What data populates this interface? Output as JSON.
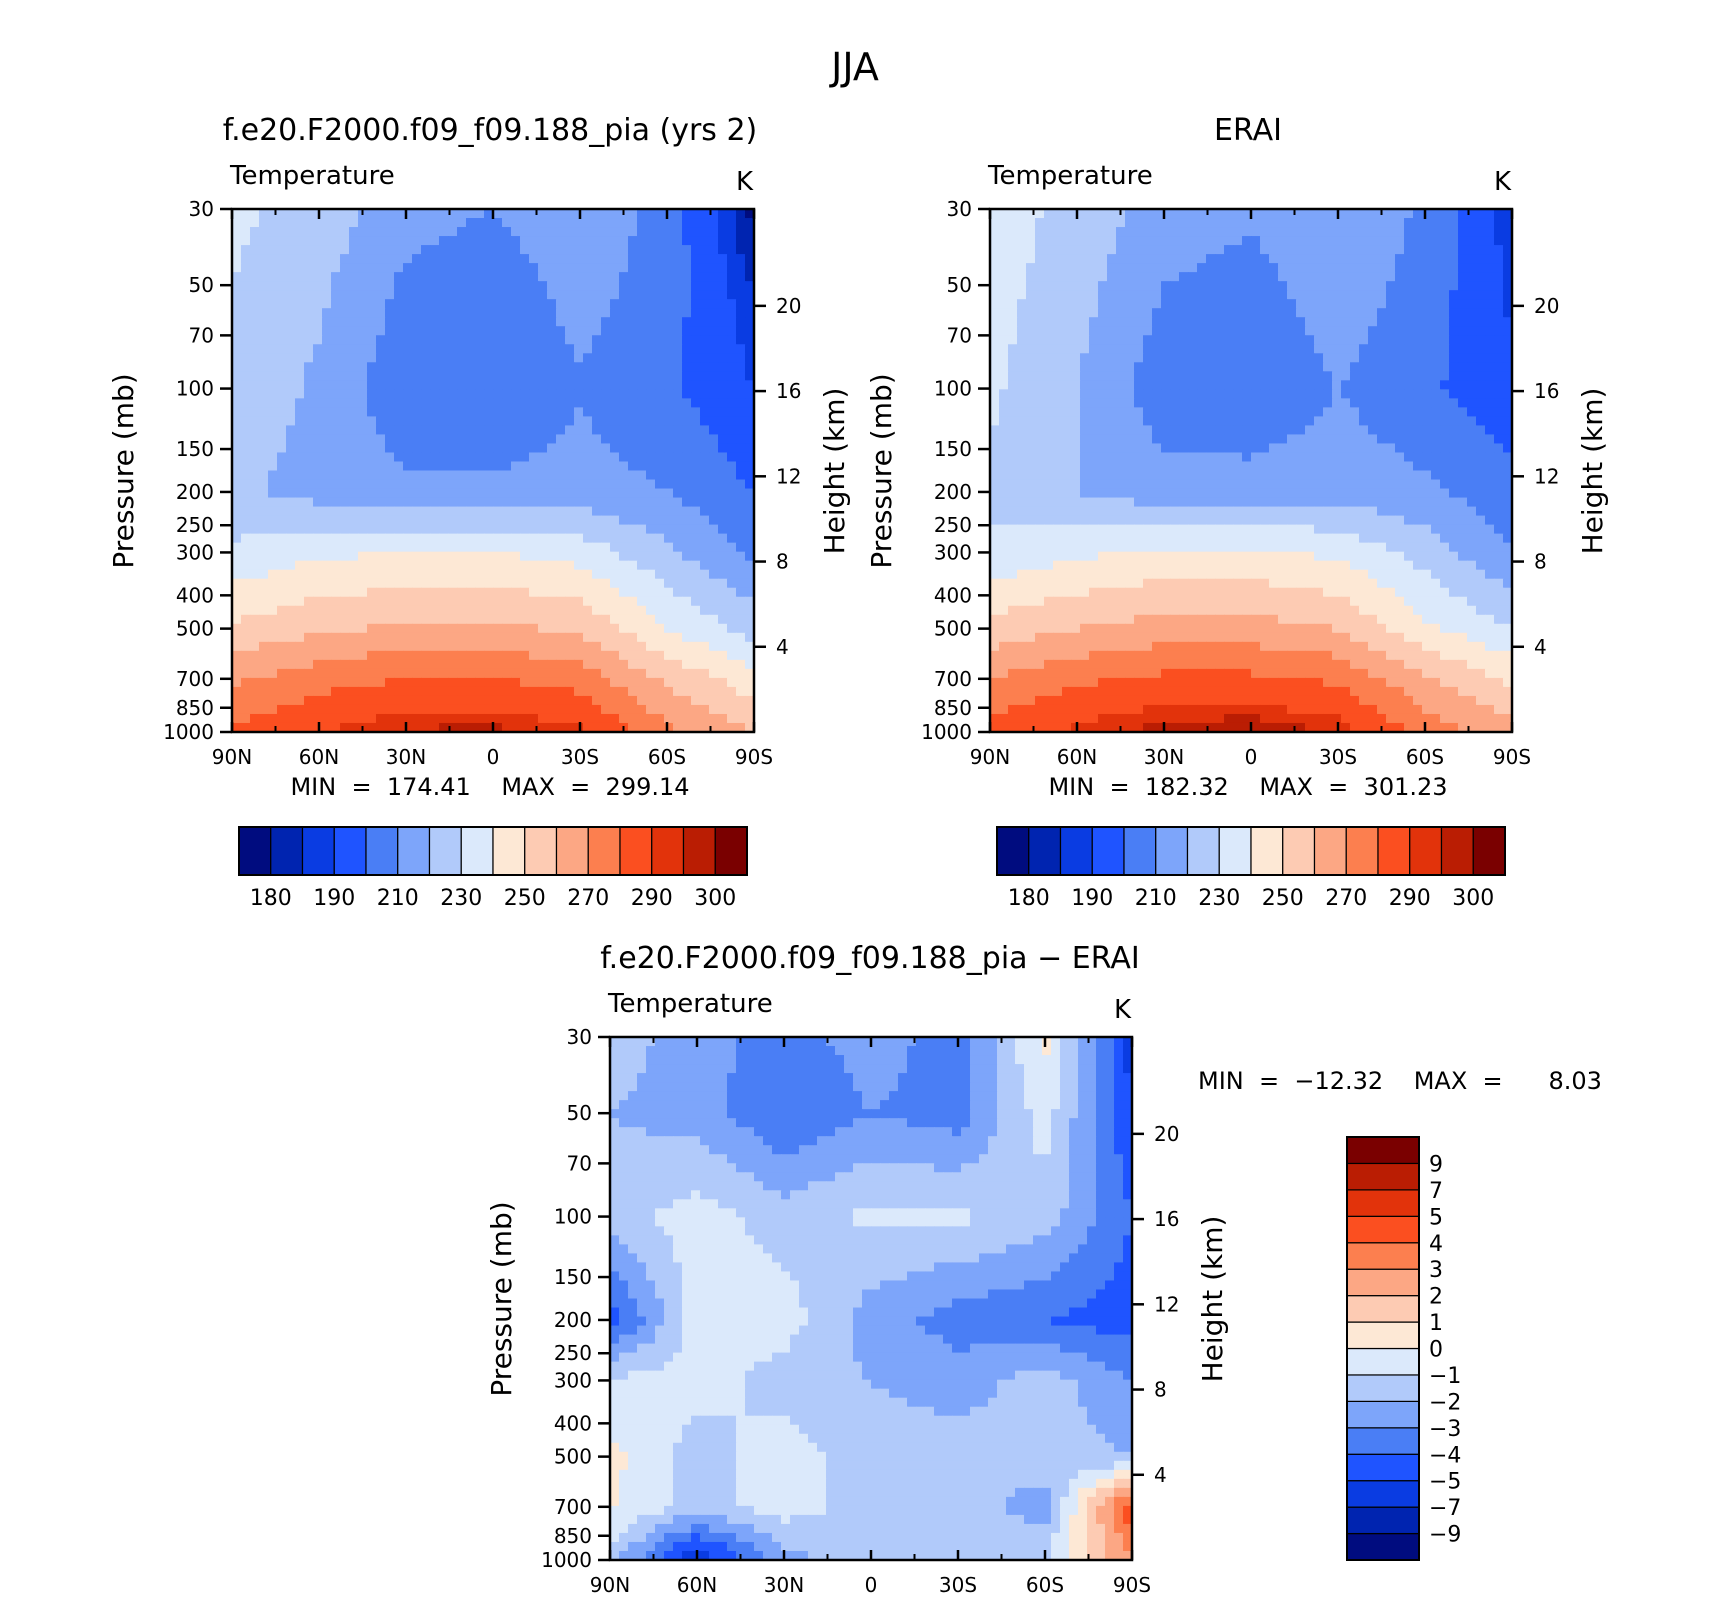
{
  "figure": {
    "season": "JJA"
  },
  "colors": {
    "abs": [
      "#000c7f",
      "#0024b0",
      "#0a3ce2",
      "#1f54ff",
      "#4a7ef5",
      "#7da5fa",
      "#b1cafa",
      "#dbe9fb",
      "#fde8d5",
      "#fdcbb3",
      "#fca784",
      "#fc7f4f",
      "#fb4f20",
      "#e2330b",
      "#ba1d03",
      "#7a0000"
    ],
    "diff": [
      "#000c7f",
      "#0024b0",
      "#0a3ce2",
      "#1f54ff",
      "#4a7ef5",
      "#7da5fa",
      "#b1cafa",
      "#dbe9fb",
      "#fde8d5",
      "#fdcbb3",
      "#fca784",
      "#fc7f4f",
      "#fb4f20",
      "#e2330b",
      "#ba1d03",
      "#7a0000"
    ]
  },
  "panels": [
    {
      "title": "f.e20.F2000.f09_f09.188_pia (yrs 2)",
      "left_label": "Temperature",
      "units": "K",
      "ylabel": "Pressure (mb)",
      "ylabel_right": "Height (km)",
      "x_ticks": [
        "90N",
        "60N",
        "30N",
        "0",
        "30S",
        "60S",
        "90S"
      ],
      "p_ticks": [
        "30",
        "50",
        "70",
        "100",
        "150",
        "200",
        "250",
        "300",
        "400",
        "500",
        "700",
        "850",
        "1000"
      ],
      "h_ticks": [
        "20",
        "16",
        "12",
        "8",
        "4"
      ],
      "min_label": "MIN",
      "min_value": "174.41",
      "max_label": "MAX",
      "max_value": "299.14",
      "colorbar_labels": [
        "180",
        "190",
        "210",
        "230",
        "250",
        "270",
        "290",
        "300"
      ]
    },
    {
      "title": "ERAI",
      "left_label": "Temperature",
      "units": "K",
      "ylabel": "Pressure (mb)",
      "ylabel_right": "Height (km)",
      "x_ticks": [
        "90N",
        "60N",
        "30N",
        "0",
        "30S",
        "60S",
        "90S"
      ],
      "p_ticks": [
        "30",
        "50",
        "70",
        "100",
        "150",
        "200",
        "250",
        "300",
        "400",
        "500",
        "700",
        "850",
        "1000"
      ],
      "h_ticks": [
        "20",
        "16",
        "12",
        "8",
        "4"
      ],
      "min_label": "MIN",
      "min_value": "182.32",
      "max_label": "MAX",
      "max_value": "301.23",
      "colorbar_labels": [
        "180",
        "190",
        "210",
        "230",
        "250",
        "270",
        "290",
        "300"
      ]
    },
    {
      "title": "f.e20.F2000.f09_f09.188_pia − ERAI",
      "left_label": "Temperature",
      "units": "K",
      "ylabel": "Pressure (mb)",
      "ylabel_right": "Height (km)",
      "x_ticks": [
        "90N",
        "60N",
        "30N",
        "0",
        "30S",
        "60S",
        "90S"
      ],
      "p_ticks": [
        "30",
        "50",
        "70",
        "100",
        "150",
        "200",
        "250",
        "300",
        "400",
        "500",
        "700",
        "850",
        "1000"
      ],
      "h_ticks": [
        "20",
        "16",
        "12",
        "8",
        "4"
      ],
      "min_label": "MIN",
      "min_value": "−12.32",
      "max_label": "MAX",
      "max_value": "8.03",
      "colorbar_labels": [
        "9",
        "7",
        "5",
        "4",
        "3",
        "2",
        "1",
        "0",
        "−1",
        "−2",
        "−3",
        "−4",
        "−5",
        "−7",
        "−9"
      ]
    }
  ],
  "chart_data": [
    {
      "type": "heatmap",
      "subtype": "filled-contour",
      "title": "f.e20.F2000.f09_f09.188_pia (yrs 2)",
      "variable": "Temperature",
      "units": "K",
      "xlabel": "",
      "ylabel": "Pressure (mb)",
      "ylabel_right": "Height (km)",
      "x_range": [
        90,
        -90
      ],
      "y_scale": "log",
      "y_range_mb": [
        1000,
        30
      ],
      "height_ticks_km": [
        20,
        16,
        12,
        8,
        4
      ],
      "min": 174.41,
      "max": 299.14,
      "levels": [
        180,
        185,
        190,
        200,
        210,
        220,
        230,
        240,
        250,
        260,
        270,
        280,
        290,
        295,
        300
      ],
      "lat": [
        90,
        60,
        30,
        0,
        -30,
        -60,
        -90
      ],
      "pressure": [
        30,
        50,
        100,
        200,
        300,
        500,
        700,
        1000
      ],
      "values": [
        [
          232,
          226,
          214,
          210,
          218,
          206,
          178
        ],
        [
          230,
          222,
          208,
          204,
          214,
          205,
          184
        ],
        [
          228,
          218,
          203,
          201,
          209,
          202,
          190
        ],
        [
          222,
          216,
          212,
          212,
          214,
          210,
          200
        ],
        [
          232,
          238,
          240,
          240,
          236,
          222,
          208
        ],
        [
          252,
          258,
          262,
          262,
          258,
          240,
          226
        ],
        [
          268,
          276,
          280,
          280,
          276,
          258,
          244
        ],
        [
          282,
          290,
          296,
          297,
          292,
          272,
          260
        ]
      ]
    },
    {
      "type": "heatmap",
      "subtype": "filled-contour",
      "title": "ERAI",
      "variable": "Temperature",
      "units": "K",
      "xlabel": "",
      "ylabel": "Pressure (mb)",
      "ylabel_right": "Height (km)",
      "x_range": [
        90,
        -90
      ],
      "y_scale": "log",
      "y_range_mb": [
        1000,
        30
      ],
      "height_ticks_km": [
        20,
        16,
        12,
        8,
        4
      ],
      "min": 182.32,
      "max": 301.23,
      "levels": [
        180,
        185,
        190,
        200,
        210,
        220,
        230,
        240,
        250,
        260,
        270,
        280,
        290,
        295,
        300
      ],
      "lat": [
        90,
        60,
        30,
        0,
        -30,
        -60,
        -90
      ],
      "pressure": [
        30,
        50,
        100,
        200,
        300,
        500,
        700,
        1000
      ],
      "values": [
        [
          236,
          226,
          216,
          212,
          220,
          208,
          186
        ],
        [
          234,
          224,
          210,
          206,
          216,
          206,
          188
        ],
        [
          232,
          220,
          204,
          202,
          210,
          202,
          192
        ],
        [
          228,
          220,
          214,
          214,
          216,
          212,
          204
        ],
        [
          232,
          238,
          242,
          242,
          238,
          226,
          210
        ],
        [
          254,
          260,
          264,
          264,
          260,
          242,
          230
        ],
        [
          270,
          278,
          282,
          282,
          278,
          262,
          248
        ],
        [
          284,
          292,
          298,
          300,
          294,
          276,
          264
        ]
      ]
    },
    {
      "type": "heatmap",
      "subtype": "filled-contour",
      "title": "f.e20.F2000.f09_f09.188_pia − ERAI",
      "variable": "Temperature",
      "units": "K",
      "xlabel": "",
      "ylabel": "Pressure (mb)",
      "ylabel_right": "Height (km)",
      "x_range": [
        90,
        -90
      ],
      "y_scale": "log",
      "y_range_mb": [
        1000,
        30
      ],
      "height_ticks_km": [
        20,
        16,
        12,
        8,
        4
      ],
      "min": -12.32,
      "max": 8.03,
      "levels": [
        -9,
        -7,
        -5,
        -4,
        -3,
        -2,
        -1,
        0,
        1,
        2,
        3,
        4,
        5,
        7,
        9
      ],
      "lat": [
        90,
        60,
        30,
        0,
        -30,
        -60,
        -90
      ],
      "pressure": [
        30,
        50,
        100,
        200,
        300,
        500,
        700,
        1000
      ],
      "values": [
        [
          -1.5,
          -2.5,
          -3.5,
          -2.5,
          -3.5,
          0.3,
          -5.5
        ],
        [
          -2.0,
          -2.5,
          -4.0,
          -3.0,
          -3.5,
          -0.5,
          -5.0
        ],
        [
          -1.5,
          -0.5,
          -1.5,
          -0.8,
          -0.8,
          -1.5,
          -4.0
        ],
        [
          -4.5,
          -0.5,
          -0.5,
          -2.5,
          -3.5,
          -4.0,
          -4.5
        ],
        [
          -0.8,
          -0.5,
          -1.5,
          -2.0,
          -2.5,
          -1.5,
          -3.0
        ],
        [
          0.3,
          -1.5,
          -0.5,
          -1.5,
          -1.5,
          -1.5,
          -2.0
        ],
        [
          0.2,
          -1.5,
          -0.5,
          -1.5,
          -1.5,
          -2.5,
          5.0
        ],
        [
          -1.5,
          -6.0,
          -2.5,
          -1.0,
          -1.5,
          -1.0,
          3.0
        ]
      ]
    }
  ]
}
